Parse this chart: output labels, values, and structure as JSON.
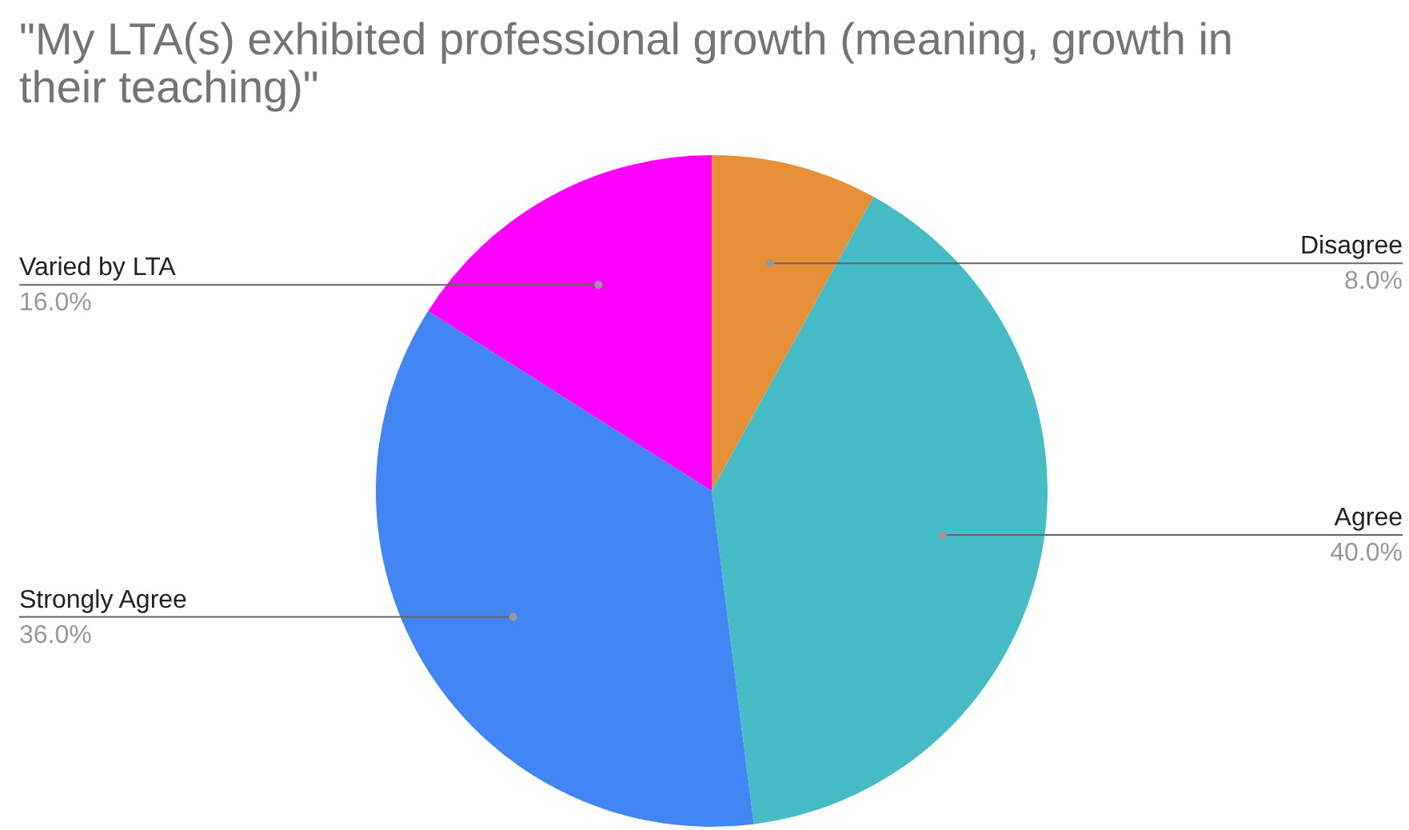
{
  "chart_data": {
    "type": "pie",
    "title": "\"My LTA(s) exhibited professional growth (meaning, growth in their teaching)\"",
    "categories": [
      "Disagree",
      "Agree",
      "Strongly Agree",
      "Varied by LTA"
    ],
    "values": [
      8,
      40,
      36,
      16
    ],
    "colors": [
      "#e69138",
      "#46bdc6",
      "#4285f4",
      "#ff00ff"
    ],
    "value_labels": [
      "8.0%",
      "40.0%",
      "36.0%",
      "16.0%"
    ]
  }
}
